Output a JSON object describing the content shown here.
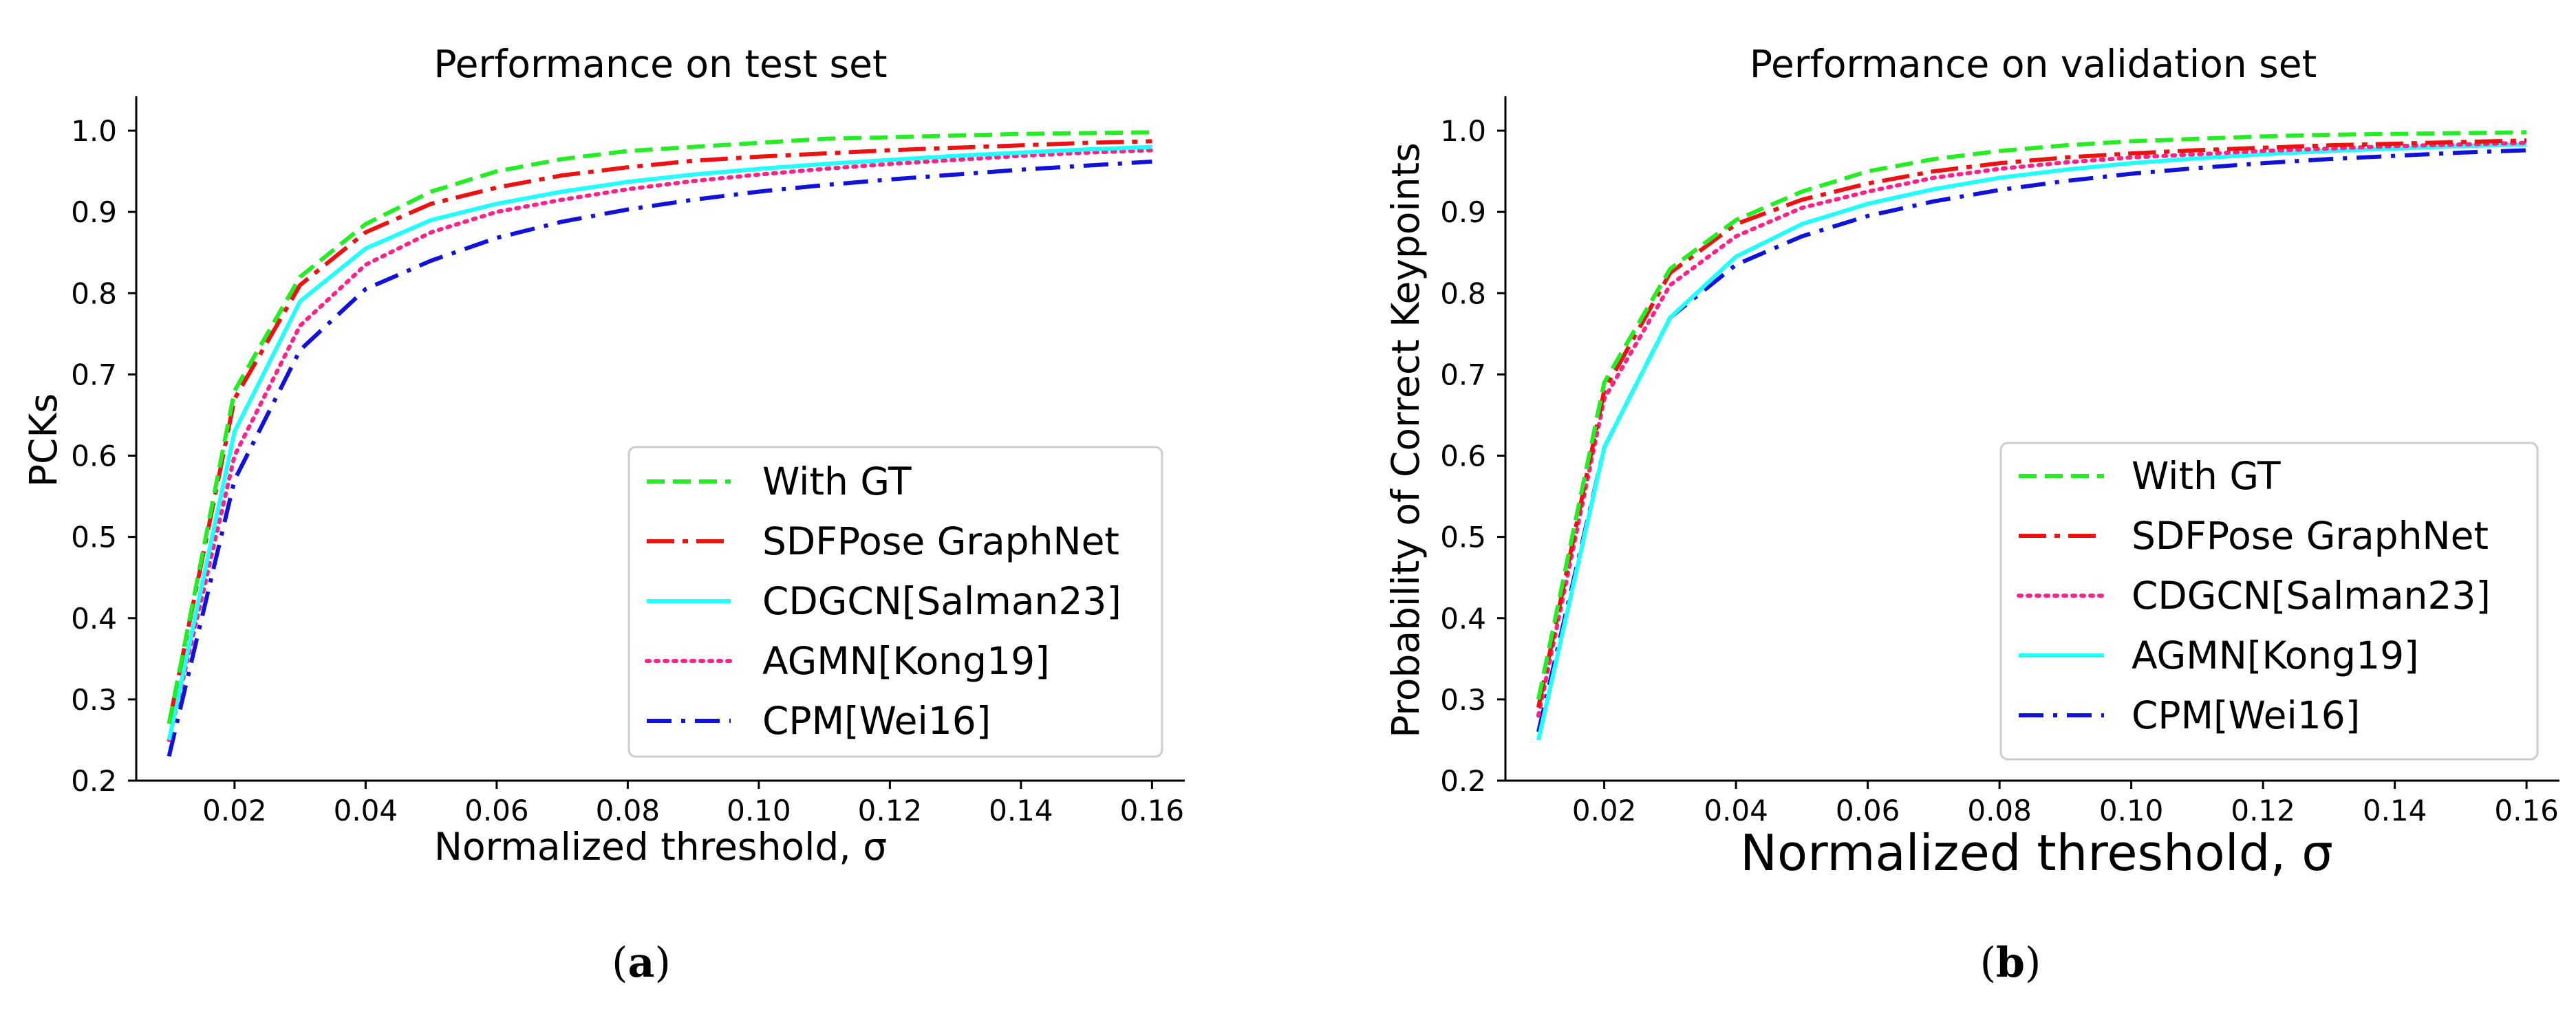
{
  "chart_data": [
    {
      "type": "line",
      "title": "Performance on test set",
      "xlabel": "Normalized threshold, σ",
      "ylabel": "PCKs",
      "caption": {
        "open": "(",
        "letter": "a",
        "close": ")"
      },
      "xlim": [
        0.005,
        0.165
      ],
      "ylim": [
        0.2,
        1.0
      ],
      "xticks": [
        "0.02",
        "0.04",
        "0.06",
        "0.08",
        "0.10",
        "0.12",
        "0.14",
        "0.16"
      ],
      "yticks": [
        "0.2",
        "0.3",
        "0.4",
        "0.5",
        "0.6",
        "0.7",
        "0.8",
        "0.9",
        "1.0"
      ],
      "legend_position": "lower-right",
      "x": [
        0.01,
        0.02,
        0.03,
        0.04,
        0.05,
        0.06,
        0.07,
        0.08,
        0.09,
        0.1,
        0.11,
        0.12,
        0.13,
        0.14,
        0.15,
        0.16
      ],
      "series": [
        {
          "name": "With GT",
          "color": "#22ee22",
          "style": "dashed",
          "values": [
            0.27,
            0.68,
            0.82,
            0.885,
            0.925,
            0.95,
            0.965,
            0.975,
            0.98,
            0.985,
            0.99,
            0.992,
            0.994,
            0.996,
            0.997,
            0.998
          ]
        },
        {
          "name": "SDFPose GraphNet",
          "color": "#ee1111",
          "style": "dashdot-long",
          "values": [
            0.27,
            0.67,
            0.81,
            0.875,
            0.91,
            0.93,
            0.945,
            0.955,
            0.963,
            0.968,
            0.972,
            0.976,
            0.979,
            0.982,
            0.985,
            0.987
          ]
        },
        {
          "name": "CDGCN[Salman23]",
          "color": "#22ffff",
          "style": "solid",
          "values": [
            0.25,
            0.63,
            0.79,
            0.855,
            0.89,
            0.91,
            0.925,
            0.937,
            0.946,
            0.953,
            0.959,
            0.964,
            0.969,
            0.973,
            0.977,
            0.98
          ]
        },
        {
          "name": "AGMN[Kong19]",
          "color": "#ff2288",
          "style": "dotted",
          "values": [
            0.25,
            0.6,
            0.76,
            0.835,
            0.875,
            0.9,
            0.915,
            0.928,
            0.938,
            0.946,
            0.953,
            0.959,
            0.964,
            0.969,
            0.973,
            0.976
          ]
        },
        {
          "name": "CPM[Wei16]",
          "color": "#1111dd",
          "style": "dashdot",
          "values": [
            0.23,
            0.57,
            0.73,
            0.805,
            0.84,
            0.868,
            0.888,
            0.903,
            0.915,
            0.925,
            0.933,
            0.94,
            0.946,
            0.952,
            0.957,
            0.962
          ]
        }
      ]
    },
    {
      "type": "line",
      "title": "Performance on validation set",
      "xlabel": "Normalized threshold, σ",
      "ylabel": "Probability of Correct Keypoints",
      "caption": {
        "open": "(",
        "letter": "b",
        "close": ")"
      },
      "xlim": [
        0.005,
        0.165
      ],
      "ylim": [
        0.2,
        1.0
      ],
      "xticks": [
        "0.02",
        "0.04",
        "0.06",
        "0.08",
        "0.10",
        "0.12",
        "0.14",
        "0.16"
      ],
      "yticks": [
        "0.2",
        "0.3",
        "0.4",
        "0.5",
        "0.6",
        "0.7",
        "0.8",
        "0.9",
        "1.0"
      ],
      "legend_position": "lower-right",
      "x": [
        0.01,
        0.02,
        0.03,
        0.04,
        0.05,
        0.06,
        0.07,
        0.08,
        0.09,
        0.1,
        0.11,
        0.12,
        0.13,
        0.14,
        0.15,
        0.16
      ],
      "series": [
        {
          "name": "With GT",
          "color": "#22ee22",
          "style": "dashed",
          "values": [
            0.3,
            0.69,
            0.83,
            0.89,
            0.925,
            0.95,
            0.965,
            0.975,
            0.982,
            0.987,
            0.99,
            0.993,
            0.995,
            0.996,
            0.997,
            0.998
          ]
        },
        {
          "name": "SDFPose GraphNet",
          "color": "#ee1111",
          "style": "dashdot-long",
          "values": [
            0.29,
            0.68,
            0.825,
            0.885,
            0.915,
            0.935,
            0.95,
            0.96,
            0.967,
            0.972,
            0.976,
            0.979,
            0.982,
            0.984,
            0.986,
            0.988
          ]
        },
        {
          "name": "CDGCN[Salman23]",
          "color": "#ff2288",
          "style": "dotted",
          "values": [
            0.28,
            0.67,
            0.81,
            0.87,
            0.905,
            0.925,
            0.942,
            0.953,
            0.961,
            0.967,
            0.971,
            0.975,
            0.978,
            0.981,
            0.983,
            0.985
          ]
        },
        {
          "name": "AGMN[Kong19]",
          "color": "#22ffff",
          "style": "solid",
          "values": [
            0.25,
            0.61,
            0.77,
            0.845,
            0.885,
            0.91,
            0.928,
            0.942,
            0.952,
            0.96,
            0.966,
            0.971,
            0.975,
            0.978,
            0.981,
            0.983
          ]
        },
        {
          "name": "CPM[Wei16]",
          "color": "#1111dd",
          "style": "dashdot",
          "values": [
            0.26,
            0.61,
            0.77,
            0.835,
            0.87,
            0.895,
            0.913,
            0.927,
            0.938,
            0.947,
            0.954,
            0.96,
            0.965,
            0.969,
            0.973,
            0.976
          ]
        }
      ]
    }
  ]
}
